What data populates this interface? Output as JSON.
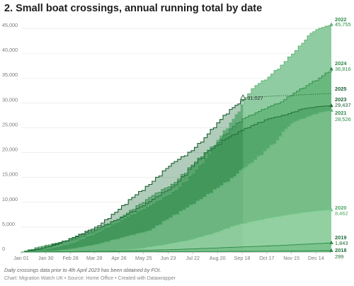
{
  "chart_data": {
    "type": "area",
    "title": "2. Small boat crossings, annual running total by date",
    "xlabel": "",
    "ylabel": "",
    "ylim": [
      0,
      46000
    ],
    "xlim": [
      0,
      365
    ],
    "grid": true,
    "legend": "direct labels at right end of each series",
    "y_ticks": [
      0,
      5000,
      10000,
      15000,
      20000,
      25000,
      30000,
      35000,
      40000,
      45000
    ],
    "y_tick_labels": [
      "0",
      "5,000",
      "10,000",
      "15,000",
      "20,000",
      "25,000",
      "30,000",
      "35,000",
      "40,000",
      "45,000"
    ],
    "x_ticks": [
      {
        "label": "Jan 01",
        "day": 0
      },
      {
        "label": "Jan 30",
        "day": 29
      },
      {
        "label": "Feb 28",
        "day": 58
      },
      {
        "label": "Mar 28",
        "day": 86
      },
      {
        "label": "Apr 26",
        "day": 115
      },
      {
        "label": "May 25",
        "day": 144
      },
      {
        "label": "Jun 23",
        "day": 173
      },
      {
        "label": "Jul 22",
        "day": 202
      },
      {
        "label": "Aug 20",
        "day": 231
      },
      {
        "label": "Sep 18",
        "day": 260
      },
      {
        "label": "Oct 17",
        "day": 289
      },
      {
        "label": "Nov 15",
        "day": 318
      },
      {
        "label": "Dec 14",
        "day": 347
      }
    ],
    "series": [
      {
        "name": "2022",
        "end_label": "45,755",
        "color": "#7cc391",
        "points": [
          [
            0,
            0
          ],
          [
            20,
            450
          ],
          [
            40,
            1100
          ],
          [
            60,
            2000
          ],
          [
            90,
            4200
          ],
          [
            120,
            6900
          ],
          [
            150,
            9500
          ],
          [
            180,
            12600
          ],
          [
            200,
            15900
          ],
          [
            215,
            19000
          ],
          [
            230,
            22500
          ],
          [
            245,
            26000
          ],
          [
            255,
            28200
          ],
          [
            262,
            31000
          ],
          [
            275,
            33500
          ],
          [
            290,
            35200
          ],
          [
            305,
            37600
          ],
          [
            318,
            39800
          ],
          [
            330,
            42000
          ],
          [
            340,
            44000
          ],
          [
            350,
            45000
          ],
          [
            365,
            45755
          ]
        ]
      },
      {
        "name": "2024",
        "end_label": "36,816",
        "color": "#49a862",
        "points": [
          [
            0,
            0
          ],
          [
            20,
            1000
          ],
          [
            40,
            1800
          ],
          [
            60,
            2500
          ],
          [
            90,
            4600
          ],
          [
            120,
            7400
          ],
          [
            150,
            11000
          ],
          [
            180,
            14000
          ],
          [
            200,
            17500
          ],
          [
            215,
            20000
          ],
          [
            230,
            22000
          ],
          [
            245,
            24800
          ],
          [
            260,
            26800
          ],
          [
            275,
            28000
          ],
          [
            290,
            29200
          ],
          [
            305,
            30200
          ],
          [
            320,
            32000
          ],
          [
            335,
            33500
          ],
          [
            350,
            35000
          ],
          [
            365,
            36816
          ]
        ]
      },
      {
        "name": "2025",
        "end_label": "31,027",
        "color": "#1f6e38",
        "points": [
          [
            0,
            0
          ],
          [
            20,
            650
          ],
          [
            40,
            1500
          ],
          [
            60,
            2900
          ],
          [
            90,
            5300
          ],
          [
            110,
            8000
          ],
          [
            130,
            11000
          ],
          [
            150,
            13600
          ],
          [
            170,
            16800
          ],
          [
            180,
            18200
          ],
          [
            200,
            20400
          ],
          [
            215,
            23000
          ],
          [
            230,
            26000
          ],
          [
            245,
            28700
          ],
          [
            255,
            29800
          ],
          [
            261,
            31027
          ]
        ],
        "projection": [
          [
            261,
            31027
          ],
          [
            300,
            31400
          ],
          [
            340,
            31700
          ],
          [
            365,
            31900
          ]
        ]
      },
      {
        "name": "2023",
        "end_label": "29,437",
        "color": "#2d8a47",
        "points": [
          [
            0,
            0
          ],
          [
            20,
            550
          ],
          [
            40,
            1700
          ],
          [
            60,
            2800
          ],
          [
            90,
            4900
          ],
          [
            120,
            7200
          ],
          [
            150,
            10200
          ],
          [
            180,
            13500
          ],
          [
            200,
            17200
          ],
          [
            220,
            20400
          ],
          [
            240,
            22800
          ],
          [
            255,
            24200
          ],
          [
            270,
            25400
          ],
          [
            290,
            26800
          ],
          [
            310,
            27600
          ],
          [
            330,
            28800
          ],
          [
            350,
            29300
          ],
          [
            365,
            29437
          ]
        ]
      },
      {
        "name": "2021",
        "end_label": "28,526",
        "color": "#9fd6ad",
        "points": [
          [
            0,
            0
          ],
          [
            40,
            250
          ],
          [
            60,
            650
          ],
          [
            90,
            1600
          ],
          [
            120,
            3000
          ],
          [
            150,
            4300
          ],
          [
            170,
            6500
          ],
          [
            190,
            8500
          ],
          [
            210,
            10600
          ],
          [
            230,
            12900
          ],
          [
            250,
            15200
          ],
          [
            260,
            16800
          ],
          [
            270,
            18000
          ],
          [
            285,
            20300
          ],
          [
            300,
            22500
          ],
          [
            310,
            24800
          ],
          [
            320,
            26200
          ],
          [
            335,
            27200
          ],
          [
            350,
            28100
          ],
          [
            365,
            28526
          ]
        ]
      },
      {
        "name": "2020",
        "end_label": "8,462",
        "color": "#b5e7c0",
        "points": [
          [
            0,
            0
          ],
          [
            60,
            150
          ],
          [
            90,
            250
          ],
          [
            120,
            400
          ],
          [
            140,
            700
          ],
          [
            170,
            1500
          ],
          [
            200,
            2500
          ],
          [
            230,
            4000
          ],
          [
            250,
            5300
          ],
          [
            270,
            6100
          ],
          [
            290,
            6800
          ],
          [
            310,
            7400
          ],
          [
            330,
            7900
          ],
          [
            350,
            8300
          ],
          [
            365,
            8462
          ]
        ]
      },
      {
        "name": "2019",
        "end_label": "1,843",
        "color": "#49a862",
        "points": [
          [
            0,
            0
          ],
          [
            60,
            100
          ],
          [
            120,
            250
          ],
          [
            180,
            500
          ],
          [
            240,
            900
          ],
          [
            300,
            1300
          ],
          [
            330,
            1550
          ],
          [
            365,
            1843
          ]
        ]
      },
      {
        "name": "2018",
        "end_label": "299",
        "color": "#49a862",
        "points": [
          [
            0,
            0
          ],
          [
            120,
            40
          ],
          [
            240,
            120
          ],
          [
            300,
            180
          ],
          [
            365,
            299
          ]
        ]
      }
    ],
    "annotations": [
      {
        "text": "31,027",
        "series": "2025"
      }
    ]
  },
  "footer": {
    "note": "Daily crossings data prior to 4th April 2023 has been obtained by FOI.",
    "source": "Chart: Migration Watch UK • Source: Home Office • Created with Datawrapper"
  }
}
